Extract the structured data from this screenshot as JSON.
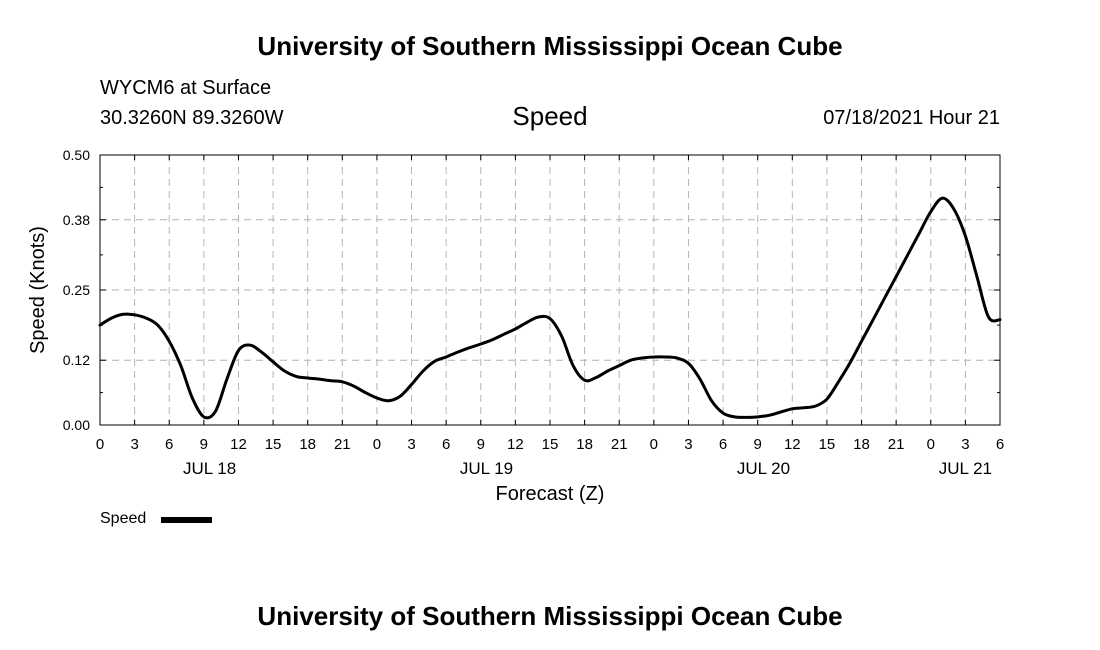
{
  "header": {
    "org_title": "University of Southern Mississippi Ocean Cube",
    "station": "WYCM6 at Surface",
    "coords": "30.3260N  89.3260W",
    "valid_time": "07/18/2021 Hour 21"
  },
  "footer": {
    "org_title": "University of Southern Mississippi Ocean Cube"
  },
  "chart_data": {
    "type": "line",
    "title": "Speed",
    "xlabel": "Forecast (Z)",
    "ylabel": "Speed (Knots)",
    "ylim": [
      0,
      0.5
    ],
    "yticks": [
      0.0,
      0.12,
      0.25,
      0.38,
      0.5
    ],
    "ytick_labels": [
      "0.00",
      "0.12",
      "0.25",
      "0.38",
      "0.50"
    ],
    "xlim": [
      0,
      78
    ],
    "xticks": [
      0,
      3,
      6,
      9,
      12,
      15,
      18,
      21,
      24,
      27,
      30,
      33,
      36,
      39,
      42,
      45,
      48,
      51,
      54,
      57,
      60,
      63,
      66,
      69,
      72,
      75,
      78
    ],
    "xtick_labels": [
      "0",
      "3",
      "6",
      "9",
      "12",
      "15",
      "18",
      "21",
      "0",
      "3",
      "6",
      "9",
      "12",
      "15",
      "18",
      "21",
      "0",
      "3",
      "6",
      "9",
      "12",
      "15",
      "18",
      "21",
      "0",
      "3",
      "6"
    ],
    "date_labels": [
      {
        "text": "JUL 18",
        "x": 9.5
      },
      {
        "text": "JUL 19",
        "x": 33.5
      },
      {
        "text": "JUL 20",
        "x": 57.5
      },
      {
        "text": "JUL 21",
        "x": 75
      }
    ],
    "grid": true,
    "legend": "bottom-left",
    "series": [
      {
        "name": "Speed",
        "color": "#000000",
        "x": [
          0,
          1,
          2,
          3,
          4,
          5,
          6,
          7,
          8,
          9,
          10,
          11,
          12,
          13,
          14,
          15,
          16,
          17,
          18,
          19,
          20,
          21,
          22,
          23,
          24,
          25,
          26,
          27,
          28,
          29,
          30,
          31,
          32,
          33,
          34,
          35,
          36,
          37,
          38,
          39,
          40,
          41,
          42,
          43,
          44,
          45,
          46,
          47,
          48,
          49,
          50,
          51,
          52,
          53,
          54,
          55,
          56,
          57,
          58,
          59,
          60,
          61,
          62,
          63,
          64,
          65,
          66,
          67,
          68,
          69,
          70,
          71,
          72,
          73,
          74,
          75,
          76,
          77,
          78
        ],
        "values": [
          0.185,
          0.198,
          0.205,
          0.204,
          0.198,
          0.185,
          0.155,
          0.11,
          0.05,
          0.015,
          0.025,
          0.085,
          0.138,
          0.148,
          0.135,
          0.117,
          0.1,
          0.09,
          0.087,
          0.085,
          0.082,
          0.08,
          0.072,
          0.06,
          0.05,
          0.045,
          0.053,
          0.075,
          0.1,
          0.118,
          0.126,
          0.135,
          0.143,
          0.15,
          0.158,
          0.168,
          0.178,
          0.19,
          0.2,
          0.197,
          0.165,
          0.11,
          0.083,
          0.088,
          0.1,
          0.11,
          0.12,
          0.124,
          0.126,
          0.126,
          0.124,
          0.114,
          0.085,
          0.045,
          0.022,
          0.015,
          0.014,
          0.015,
          0.018,
          0.024,
          0.03,
          0.032,
          0.035,
          0.048,
          0.08,
          0.115,
          0.155,
          0.195,
          0.235,
          0.275,
          0.315,
          0.355,
          0.395,
          0.42,
          0.4,
          0.35,
          0.275,
          0.2,
          0.195
        ]
      }
    ]
  }
}
